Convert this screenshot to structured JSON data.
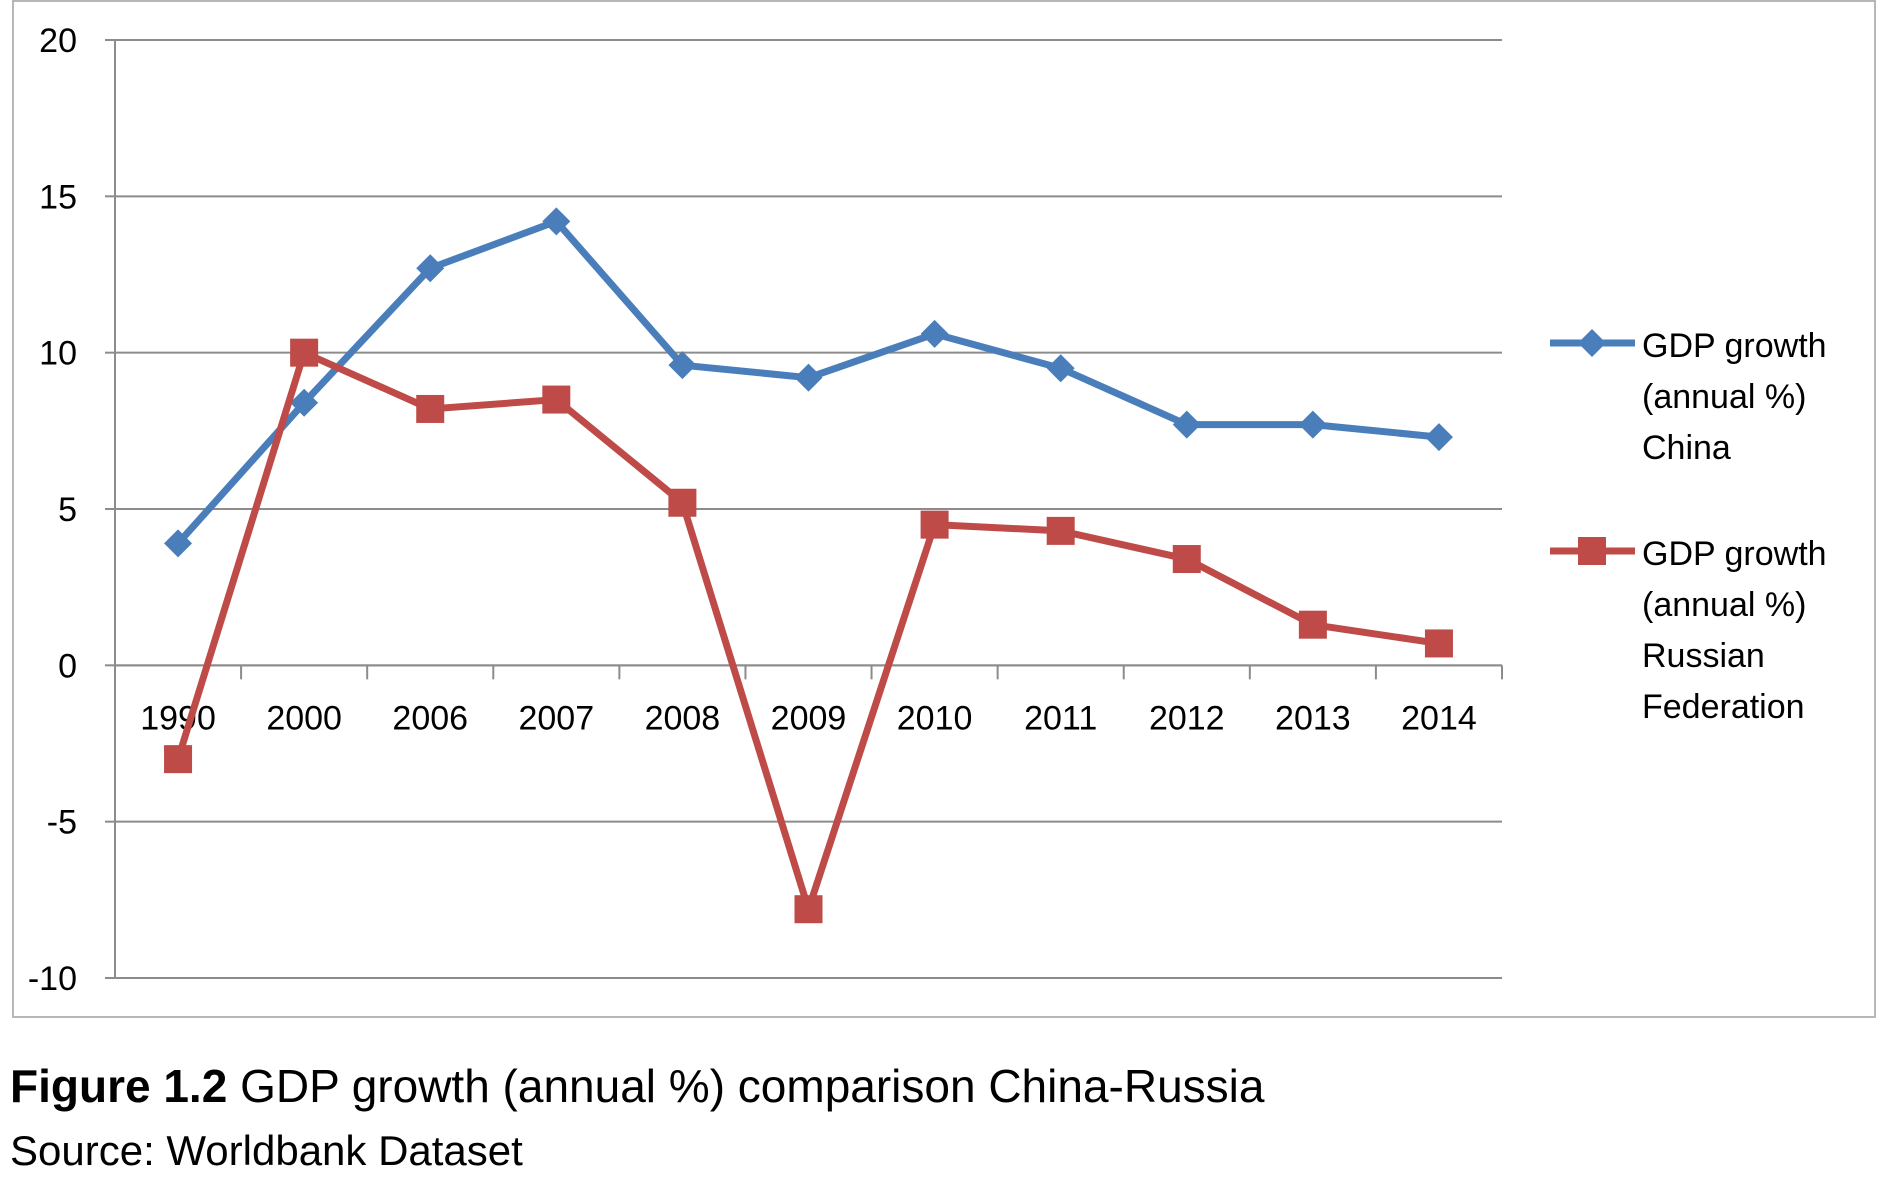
{
  "chart_data": {
    "type": "line",
    "categories": [
      "1990",
      "2000",
      "2006",
      "2007",
      "2008",
      "2009",
      "2010",
      "2011",
      "2012",
      "2013",
      "2014"
    ],
    "series": [
      {
        "name_lines": [
          "GDP growth",
          "(annual %)",
          "China"
        ],
        "values": [
          3.9,
          8.4,
          12.7,
          14.2,
          9.6,
          9.2,
          10.6,
          9.5,
          7.7,
          7.7,
          7.3
        ],
        "color": "#4a7ebb",
        "marker": "diamond"
      },
      {
        "name_lines": [
          "GDP growth",
          "(annual %)",
          "Russian",
          "Federation"
        ],
        "values": [
          -3.0,
          10.0,
          8.2,
          8.5,
          5.2,
          -7.8,
          4.5,
          4.3,
          3.4,
          1.3,
          0.7
        ],
        "color": "#be4b48",
        "marker": "square"
      }
    ],
    "ylim": [
      -10,
      20
    ],
    "yticks": [
      "20",
      "15",
      "10",
      "5",
      "0",
      "-5",
      "-10"
    ],
    "grid": true,
    "legend_position": "right"
  },
  "caption": {
    "label": "Figure 1.2",
    "text": " GDP growth (annual %) comparison China-Russia",
    "source": "Source: Worldbank Dataset"
  }
}
